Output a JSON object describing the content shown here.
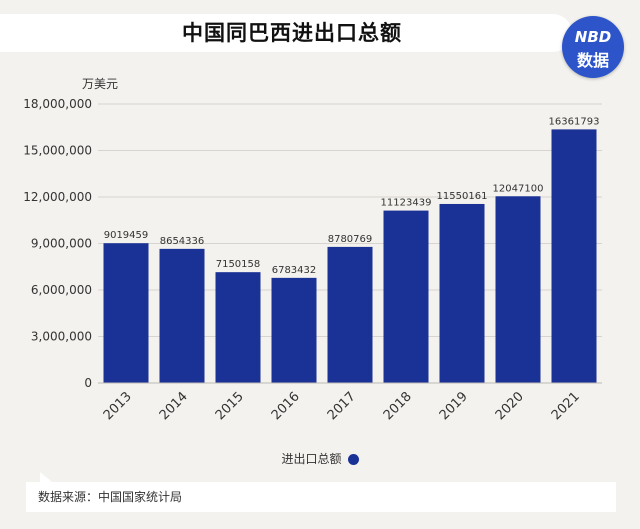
{
  "title": "中国同巴西进出口总额",
  "logo": {
    "line1": "NBD",
    "line2": "数据"
  },
  "source": "数据来源：中国国家统计局",
  "colors": {
    "bar": "#1a3196",
    "accent": "#2d55c9",
    "background": "#f4f2ee"
  },
  "chart_data": {
    "type": "bar",
    "unit_label": "万美元",
    "categories": [
      "2013",
      "2014",
      "2015",
      "2016",
      "2017",
      "2018",
      "2019",
      "2020",
      "2021"
    ],
    "series": [
      {
        "name": "进出口总额",
        "values": [
          9019459,
          8654336,
          7150158,
          6783432,
          8780769,
          11123439,
          11550161,
          12047100,
          16361793
        ]
      }
    ],
    "data_labels": [
      "9019459",
      "8654336",
      "7150158",
      "6783432",
      "8780769",
      "11123439",
      "11550161",
      "12047100",
      "16361793"
    ],
    "ylim": [
      0,
      18000000
    ],
    "yticks": [
      0,
      3000000,
      6000000,
      9000000,
      12000000,
      15000000,
      18000000
    ],
    "ytick_labels": [
      "0",
      "3,000,000",
      "6,000,000",
      "9,000,000",
      "12,000,000",
      "15,000,000",
      "18,000,000"
    ],
    "grid": true,
    "legend_position": "bottom-center"
  }
}
